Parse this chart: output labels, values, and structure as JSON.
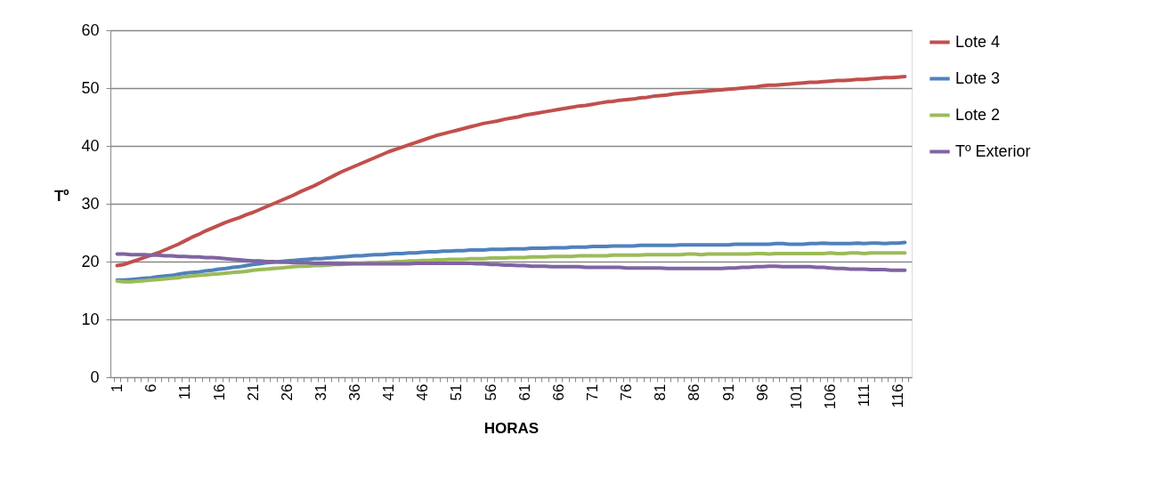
{
  "chart_data": {
    "type": "line",
    "xlabel": "HORAS",
    "ylabel": "Tº",
    "categories": [
      "1",
      null,
      null,
      null,
      null,
      "6",
      null,
      null,
      null,
      null,
      "11",
      null,
      null,
      null,
      null,
      "16",
      null,
      null,
      null,
      null,
      "21",
      null,
      null,
      null,
      null,
      "26",
      null,
      null,
      null,
      null,
      "31",
      null,
      null,
      null,
      null,
      "36",
      null,
      null,
      null,
      null,
      "41",
      null,
      null,
      null,
      null,
      "46",
      null,
      null,
      null,
      null,
      "51",
      null,
      null,
      null,
      null,
      "56",
      null,
      null,
      null,
      null,
      "61",
      null,
      null,
      null,
      null,
      "66",
      null,
      null,
      null,
      null,
      "71",
      null,
      null,
      null,
      null,
      "76",
      null,
      null,
      null,
      null,
      "81",
      null,
      null,
      null,
      null,
      "86",
      null,
      null,
      null,
      null,
      "91",
      null,
      null,
      null,
      null,
      "96",
      null,
      null,
      null,
      null,
      "101",
      null,
      null,
      null,
      null,
      "106",
      null,
      null,
      null,
      null,
      "111",
      null,
      null,
      null,
      null,
      "116",
      null
    ],
    "ylim": [
      0,
      60
    ],
    "yticks": [
      0,
      10,
      20,
      30,
      40,
      50,
      60
    ],
    "grid": "y",
    "legend": "right",
    "marker": "none",
    "line_style": "solid",
    "series": [
      {
        "name": "Lote 4",
        "color": "#c0504d",
        "values": [
          19.3,
          19.5,
          19.9,
          20.3,
          20.7,
          21.1,
          21.5,
          22.0,
          22.5,
          23.0,
          23.6,
          24.2,
          24.7,
          25.3,
          25.8,
          26.3,
          26.8,
          27.2,
          27.6,
          28.1,
          28.5,
          29.0,
          29.5,
          30.0,
          30.5,
          31.0,
          31.5,
          32.1,
          32.6,
          33.1,
          33.7,
          34.3,
          34.9,
          35.5,
          36.0,
          36.5,
          37.0,
          37.5,
          38.0,
          38.5,
          39.0,
          39.4,
          39.8,
          40.2,
          40.6,
          41.0,
          41.4,
          41.8,
          42.1,
          42.4,
          42.7,
          43.0,
          43.3,
          43.6,
          43.9,
          44.1,
          44.3,
          44.6,
          44.8,
          45.0,
          45.3,
          45.5,
          45.7,
          45.9,
          46.1,
          46.3,
          46.5,
          46.7,
          46.9,
          47.0,
          47.2,
          47.4,
          47.6,
          47.7,
          47.9,
          48.0,
          48.1,
          48.3,
          48.4,
          48.6,
          48.7,
          48.8,
          49.0,
          49.1,
          49.2,
          49.3,
          49.4,
          49.5,
          49.6,
          49.7,
          49.8,
          49.9,
          50.0,
          50.1,
          50.2,
          50.4,
          50.5,
          50.5,
          50.6,
          50.7,
          50.8,
          50.9,
          51.0,
          51.0,
          51.1,
          51.2,
          51.3,
          51.3,
          51.4,
          51.5,
          51.5,
          51.6,
          51.7,
          51.8,
          51.8,
          51.9,
          52.0
        ]
      },
      {
        "name": "Lote 3",
        "color": "#4f81bd",
        "values": [
          16.8,
          16.8,
          16.9,
          17.0,
          17.1,
          17.2,
          17.4,
          17.5,
          17.6,
          17.8,
          18.0,
          18.1,
          18.2,
          18.4,
          18.5,
          18.7,
          18.8,
          19.0,
          19.1,
          19.3,
          19.5,
          19.6,
          19.8,
          19.9,
          20.0,
          20.1,
          20.2,
          20.3,
          20.4,
          20.5,
          20.5,
          20.6,
          20.7,
          20.8,
          20.9,
          21.0,
          21.0,
          21.1,
          21.2,
          21.2,
          21.3,
          21.4,
          21.4,
          21.5,
          21.5,
          21.6,
          21.7,
          21.7,
          21.8,
          21.8,
          21.9,
          21.9,
          22.0,
          22.0,
          22.0,
          22.1,
          22.1,
          22.1,
          22.2,
          22.2,
          22.2,
          22.3,
          22.3,
          22.3,
          22.4,
          22.4,
          22.4,
          22.5,
          22.5,
          22.5,
          22.6,
          22.6,
          22.6,
          22.7,
          22.7,
          22.7,
          22.7,
          22.8,
          22.8,
          22.8,
          22.8,
          22.8,
          22.8,
          22.9,
          22.9,
          22.9,
          22.9,
          22.9,
          22.9,
          22.9,
          22.9,
          23.0,
          23.0,
          23.0,
          23.0,
          23.0,
          23.0,
          23.1,
          23.1,
          23.0,
          23.0,
          23.0,
          23.1,
          23.1,
          23.2,
          23.1,
          23.1,
          23.1,
          23.1,
          23.2,
          23.1,
          23.2,
          23.2,
          23.1,
          23.2,
          23.2,
          23.3
        ]
      },
      {
        "name": "Lote 2",
        "color": "#9bbb59",
        "values": [
          16.6,
          16.5,
          16.5,
          16.6,
          16.7,
          16.8,
          16.9,
          17.0,
          17.1,
          17.2,
          17.4,
          17.5,
          17.6,
          17.7,
          17.8,
          17.9,
          18.0,
          18.1,
          18.2,
          18.3,
          18.5,
          18.6,
          18.7,
          18.8,
          18.9,
          19.0,
          19.1,
          19.2,
          19.2,
          19.3,
          19.3,
          19.4,
          19.5,
          19.5,
          19.6,
          19.7,
          19.7,
          19.8,
          19.8,
          19.9,
          19.9,
          20.0,
          20.0,
          20.1,
          20.1,
          20.2,
          20.2,
          20.3,
          20.3,
          20.4,
          20.4,
          20.4,
          20.5,
          20.5,
          20.5,
          20.6,
          20.6,
          20.6,
          20.7,
          20.7,
          20.7,
          20.8,
          20.8,
          20.8,
          20.9,
          20.9,
          20.9,
          20.9,
          21.0,
          21.0,
          21.0,
          21.0,
          21.0,
          21.1,
          21.1,
          21.1,
          21.1,
          21.1,
          21.2,
          21.2,
          21.2,
          21.2,
          21.2,
          21.2,
          21.3,
          21.3,
          21.2,
          21.3,
          21.3,
          21.3,
          21.3,
          21.3,
          21.3,
          21.3,
          21.4,
          21.4,
          21.3,
          21.4,
          21.4,
          21.4,
          21.4,
          21.4,
          21.4,
          21.4,
          21.4,
          21.5,
          21.4,
          21.4,
          21.5,
          21.5,
          21.4,
          21.5,
          21.5,
          21.5,
          21.5,
          21.5,
          21.5
        ]
      },
      {
        "name": "Tº Exterior",
        "color": "#8064a2",
        "values": [
          21.3,
          21.3,
          21.2,
          21.2,
          21.2,
          21.1,
          21.1,
          21.0,
          21.0,
          20.9,
          20.9,
          20.8,
          20.8,
          20.7,
          20.7,
          20.6,
          20.5,
          20.4,
          20.3,
          20.2,
          20.1,
          20.1,
          20.0,
          20.0,
          19.9,
          19.9,
          19.8,
          19.8,
          19.8,
          19.7,
          19.7,
          19.7,
          19.6,
          19.6,
          19.6,
          19.6,
          19.6,
          19.6,
          19.6,
          19.6,
          19.6,
          19.6,
          19.6,
          19.6,
          19.7,
          19.7,
          19.7,
          19.7,
          19.7,
          19.7,
          19.7,
          19.7,
          19.7,
          19.6,
          19.6,
          19.5,
          19.5,
          19.4,
          19.4,
          19.3,
          19.3,
          19.2,
          19.2,
          19.2,
          19.1,
          19.1,
          19.1,
          19.1,
          19.1,
          19.0,
          19.0,
          19.0,
          19.0,
          19.0,
          19.0,
          18.9,
          18.9,
          18.9,
          18.9,
          18.9,
          18.9,
          18.8,
          18.8,
          18.8,
          18.8,
          18.8,
          18.8,
          18.8,
          18.8,
          18.8,
          18.9,
          18.9,
          19.0,
          19.0,
          19.1,
          19.1,
          19.2,
          19.2,
          19.1,
          19.1,
          19.1,
          19.1,
          19.1,
          19.0,
          19.0,
          18.9,
          18.8,
          18.8,
          18.7,
          18.7,
          18.7,
          18.6,
          18.6,
          18.6,
          18.5,
          18.5,
          18.5
        ]
      }
    ]
  }
}
